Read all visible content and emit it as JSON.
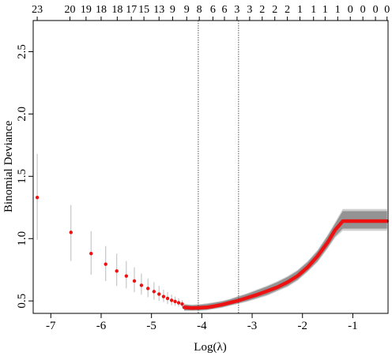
{
  "chart_data": {
    "type": "line",
    "title": "",
    "xlabel": "Log(λ)",
    "ylabel": "Binomial Deviance",
    "xlim": [
      -7.35,
      -0.3
    ],
    "ylim": [
      0.4,
      2.75
    ],
    "x_ticks": [
      -7,
      -6,
      -5,
      -4,
      -3,
      -2,
      -1
    ],
    "x_tick_labels": [
      "-7",
      "-6",
      "-5",
      "-4",
      "-3",
      "-2",
      "-1"
    ],
    "y_ticks": [
      0.5,
      1.0,
      1.5,
      2.0,
      2.5
    ],
    "y_tick_labels": [
      "0.5",
      "1.0",
      "1.5",
      "2.0",
      "2.5"
    ],
    "top_axis": {
      "x": [
        -7.27,
        -6.62,
        -6.3,
        -6.0,
        -5.68,
        -5.4,
        -5.15,
        -4.85,
        -4.58,
        -4.3,
        -4.05,
        -3.78,
        -3.55,
        -3.3,
        -3.05,
        -2.8,
        -2.55,
        -2.3,
        -2.05,
        -1.78,
        -1.55,
        -1.3,
        -1.05,
        -0.8,
        -0.55,
        -0.32
      ],
      "labels": [
        "23",
        "20",
        "19",
        "18",
        "18",
        "17",
        "15",
        "13",
        "9",
        "9",
        "8",
        "6",
        "6",
        "3",
        "3",
        "2",
        "2",
        "2",
        "1",
        "1",
        "1",
        "1",
        "0",
        "0",
        "0",
        "0"
      ]
    },
    "vlines": [
      -4.07,
      -3.27
    ],
    "grid": false,
    "legend": "none",
    "colors": {
      "points": "#ee1111",
      "curve": "#ee1111",
      "errorbar": "#bbbbbb",
      "band": "#888888",
      "band_light": "#cfcfcf"
    },
    "sparse_points": [
      {
        "x": -7.27,
        "y": 1.33,
        "lo": 0.99,
        "hi": 1.68
      },
      {
        "x": -6.6,
        "y": 1.05,
        "lo": 0.82,
        "hi": 1.27
      },
      {
        "x": -6.2,
        "y": 0.88,
        "lo": 0.71,
        "hi": 1.06
      },
      {
        "x": -5.91,
        "y": 0.795,
        "lo": 0.66,
        "hi": 0.94
      },
      {
        "x": -5.69,
        "y": 0.74,
        "lo": 0.62,
        "hi": 0.88
      },
      {
        "x": -5.5,
        "y": 0.7,
        "lo": 0.6,
        "hi": 0.82
      },
      {
        "x": -5.34,
        "y": 0.66,
        "lo": 0.57,
        "hi": 0.77
      },
      {
        "x": -5.2,
        "y": 0.625,
        "lo": 0.55,
        "hi": 0.72
      },
      {
        "x": -5.07,
        "y": 0.6,
        "lo": 0.53,
        "hi": 0.68
      },
      {
        "x": -4.95,
        "y": 0.575,
        "lo": 0.51,
        "hi": 0.65
      },
      {
        "x": -4.85,
        "y": 0.555,
        "lo": 0.5,
        "hi": 0.62
      },
      {
        "x": -4.76,
        "y": 0.535,
        "lo": 0.49,
        "hi": 0.59
      },
      {
        "x": -4.68,
        "y": 0.52,
        "lo": 0.475,
        "hi": 0.57
      },
      {
        "x": -4.6,
        "y": 0.505,
        "lo": 0.465,
        "hi": 0.55
      },
      {
        "x": -4.53,
        "y": 0.495,
        "lo": 0.46,
        "hi": 0.535
      },
      {
        "x": -4.46,
        "y": 0.485,
        "lo": 0.455,
        "hi": 0.52
      },
      {
        "x": -4.39,
        "y": 0.475,
        "lo": 0.45,
        "hi": 0.505
      }
    ],
    "curve": {
      "x": [
        -4.35,
        -4.2,
        -4.05,
        -3.9,
        -3.75,
        -3.6,
        -3.45,
        -3.3,
        -3.1,
        -2.9,
        -2.7,
        -2.5,
        -2.3,
        -2.1,
        -1.9,
        -1.7,
        -1.5,
        -1.35,
        -1.2,
        -1.0,
        -0.8,
        -0.6,
        -0.32
      ],
      "y": [
        0.448,
        0.443,
        0.445,
        0.448,
        0.458,
        0.47,
        0.485,
        0.5,
        0.525,
        0.55,
        0.58,
        0.61,
        0.65,
        0.7,
        0.77,
        0.86,
        0.97,
        1.07,
        1.14,
        1.14,
        1.14,
        1.14,
        1.14
      ],
      "lo": [
        0.425,
        0.425,
        0.425,
        0.43,
        0.44,
        0.45,
        0.465,
        0.48,
        0.5,
        0.525,
        0.55,
        0.585,
        0.62,
        0.67,
        0.74,
        0.82,
        0.93,
        1.02,
        1.08,
        1.08,
        1.08,
        1.08,
        1.08
      ],
      "hi": [
        0.47,
        0.465,
        0.468,
        0.475,
        0.485,
        0.495,
        0.51,
        0.53,
        0.555,
        0.585,
        0.615,
        0.65,
        0.69,
        0.74,
        0.81,
        0.9,
        1.02,
        1.12,
        1.22,
        1.22,
        1.22,
        1.22,
        1.22
      ]
    }
  }
}
